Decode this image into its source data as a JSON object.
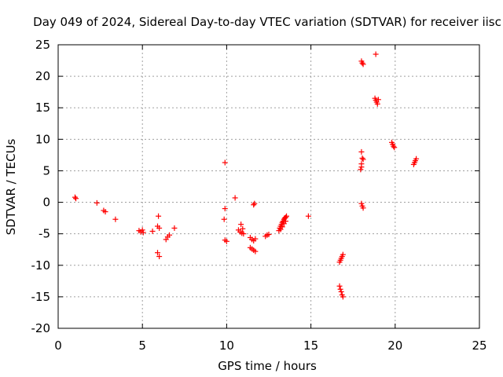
{
  "chart_data": {
    "type": "scatter",
    "title": "Day 049 of 2024, Sidereal Day-to-day VTEC variation (SDTVAR) for receiver iisc",
    "xlabel": "GPS time / hours",
    "ylabel": "SDTVAR / TECUs",
    "xlim": [
      0,
      25
    ],
    "ylim": [
      -20,
      25
    ],
    "grid": true,
    "marker": "+",
    "marker_color": "#ff0000",
    "xticks": [
      0,
      5,
      10,
      15,
      20,
      25
    ],
    "xtick_labels": [
      "0",
      "5",
      "10",
      "15",
      "20",
      "25"
    ],
    "yticks": [
      -20,
      -15,
      -10,
      -5,
      0,
      5,
      10,
      15,
      20,
      25
    ],
    "ytick_labels": [
      "-20",
      "-15",
      "-10",
      "-5",
      "0",
      "5",
      "10",
      "15",
      "20",
      "25"
    ],
    "series": [
      {
        "name": "SDTVAR",
        "points": [
          [
            1.0,
            0.8
          ],
          [
            1.05,
            0.6
          ],
          [
            2.3,
            -0.1
          ],
          [
            2.7,
            -1.3
          ],
          [
            2.8,
            -1.5
          ],
          [
            3.4,
            -2.7
          ],
          [
            4.8,
            -4.5
          ],
          [
            4.9,
            -4.7
          ],
          [
            5.0,
            -4.4
          ],
          [
            5.05,
            -4.8
          ],
          [
            5.6,
            -4.6
          ],
          [
            5.9,
            -3.8
          ],
          [
            6.0,
            -4.1
          ],
          [
            5.95,
            -2.2
          ],
          [
            5.9,
            -8.0
          ],
          [
            6.0,
            -8.6
          ],
          [
            6.4,
            -5.9
          ],
          [
            6.5,
            -5.5
          ],
          [
            6.6,
            -5.2
          ],
          [
            6.9,
            -4.1
          ],
          [
            9.9,
            6.3
          ],
          [
            9.9,
            -1.0
          ],
          [
            9.85,
            -2.7
          ],
          [
            9.9,
            -6.0
          ],
          [
            10.0,
            -6.2
          ],
          [
            10.5,
            0.7
          ],
          [
            10.7,
            -4.4
          ],
          [
            10.8,
            -4.7
          ],
          [
            10.9,
            -4.9
          ],
          [
            10.85,
            -3.5
          ],
          [
            10.95,
            -4.2
          ],
          [
            11.0,
            -5.0
          ],
          [
            11.4,
            -5.6
          ],
          [
            11.5,
            -5.9
          ],
          [
            11.6,
            -6.1
          ],
          [
            11.7,
            -5.8
          ],
          [
            11.4,
            -7.2
          ],
          [
            11.5,
            -7.4
          ],
          [
            11.6,
            -7.6
          ],
          [
            11.7,
            -7.8
          ],
          [
            11.65,
            -0.2
          ],
          [
            11.6,
            -0.4
          ],
          [
            12.3,
            -5.4
          ],
          [
            12.4,
            -5.2
          ],
          [
            12.5,
            -5.1
          ],
          [
            13.1,
            -4.5
          ],
          [
            13.15,
            -4.1
          ],
          [
            13.2,
            -3.8
          ],
          [
            13.25,
            -3.5
          ],
          [
            13.3,
            -3.2
          ],
          [
            13.35,
            -3.0
          ],
          [
            13.4,
            -2.7
          ],
          [
            13.45,
            -2.5
          ],
          [
            13.5,
            -2.4
          ],
          [
            13.55,
            -2.2
          ],
          [
            13.2,
            -4.3
          ],
          [
            13.3,
            -3.9
          ],
          [
            13.4,
            -3.4
          ],
          [
            13.5,
            -3.0
          ],
          [
            14.85,
            -2.2
          ],
          [
            16.7,
            -9.5
          ],
          [
            16.75,
            -9.2
          ],
          [
            16.8,
            -8.9
          ],
          [
            16.85,
            -8.6
          ],
          [
            16.9,
            -8.3
          ],
          [
            16.7,
            -13.3
          ],
          [
            16.75,
            -13.8
          ],
          [
            16.8,
            -14.2
          ],
          [
            16.85,
            -14.7
          ],
          [
            16.9,
            -15.0
          ],
          [
            18.0,
            8.0
          ],
          [
            18.05,
            7.0
          ],
          [
            18.1,
            6.8
          ],
          [
            18.0,
            6.1
          ],
          [
            18.0,
            5.6
          ],
          [
            17.95,
            5.2
          ],
          [
            18.0,
            -0.2
          ],
          [
            18.05,
            -0.6
          ],
          [
            18.1,
            -0.9
          ],
          [
            18.0,
            22.4
          ],
          [
            18.05,
            22.1
          ],
          [
            18.1,
            21.9
          ],
          [
            18.85,
            23.5
          ],
          [
            18.8,
            16.5
          ],
          [
            18.85,
            16.2
          ],
          [
            18.9,
            15.9
          ],
          [
            18.95,
            15.6
          ],
          [
            19.0,
            16.3
          ],
          [
            19.8,
            9.5
          ],
          [
            19.85,
            9.2
          ],
          [
            19.9,
            8.9
          ],
          [
            19.95,
            8.7
          ],
          [
            21.1,
            6.0
          ],
          [
            21.15,
            6.3
          ],
          [
            21.2,
            6.6
          ],
          [
            21.25,
            6.9
          ]
        ]
      }
    ]
  }
}
